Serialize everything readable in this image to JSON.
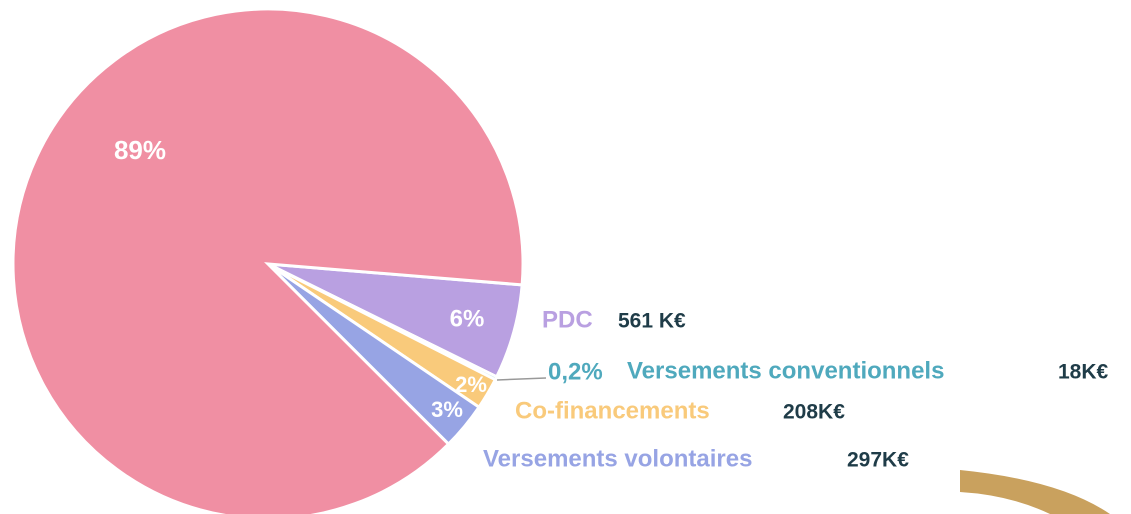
{
  "chart_data": {
    "type": "pie",
    "categories": [
      "PDC",
      "Versements conventionnels",
      "Co-financements",
      "Versements volontaires",
      null
    ],
    "values": [
      6,
      0.2,
      2,
      3,
      89
    ],
    "value_labels": [
      "6%",
      "0,2%",
      "2%",
      "3%",
      "89%"
    ],
    "amount_labels": [
      "561 K€",
      "18K€",
      "208K€",
      "297K€",
      null
    ],
    "colors": [
      "#b9a0e1",
      "#4fa9bd",
      "#f9ca7b",
      "#97a4e4",
      "#f08fa3"
    ]
  }
}
